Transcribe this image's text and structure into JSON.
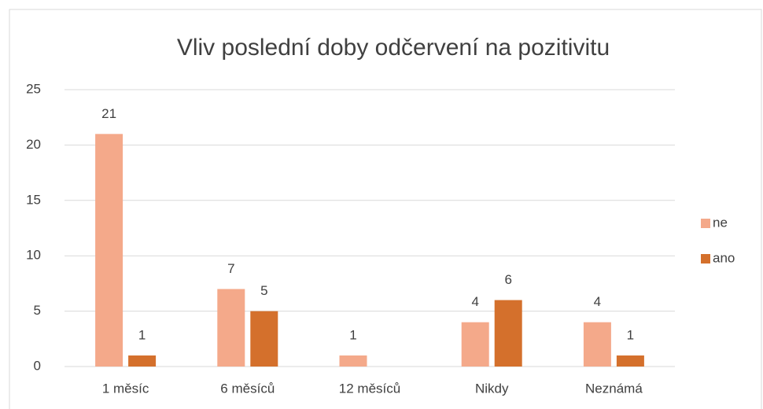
{
  "chart_data": {
    "type": "bar",
    "title": "Vliv poslední doby odčervení na pozitivitu",
    "categories": [
      "1 měsíc",
      "6 měsíců",
      "12 měsíců",
      "Nikdy",
      "Neznámá"
    ],
    "series": [
      {
        "name": "ne",
        "color": "#f4a98a",
        "values": [
          21,
          7,
          1,
          4,
          4
        ]
      },
      {
        "name": "ano",
        "color": "#d4702c",
        "values": [
          1,
          5,
          null,
          6,
          1
        ]
      }
    ],
    "ylim": [
      0,
      25
    ],
    "yticks": [
      0,
      5,
      10,
      15,
      20,
      25
    ],
    "grid": true,
    "legend": "right"
  }
}
